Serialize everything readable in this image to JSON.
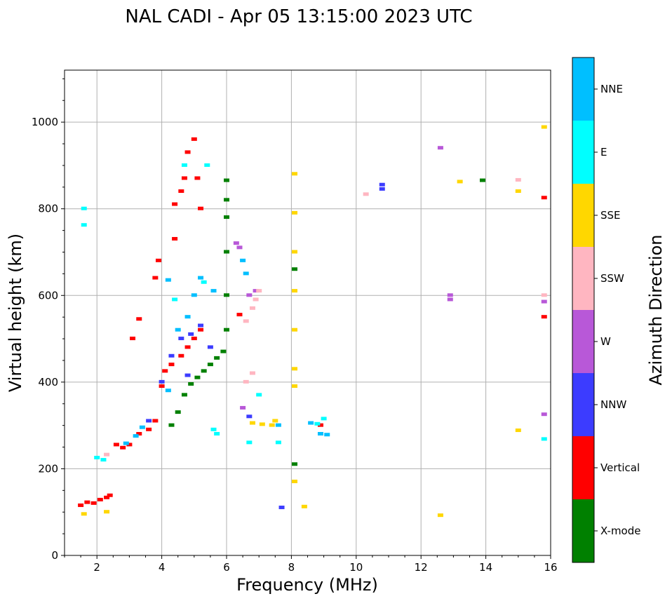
{
  "chart_data": {
    "type": "scatter",
    "title": "NAL CADI - Apr 05 13:15:00 2023 UTC",
    "xlabel": "Frequency (MHz)",
    "ylabel": "Virtual height (km)",
    "xlim": [
      1,
      16
    ],
    "ylim": [
      0,
      1120
    ],
    "xticks": [
      "2",
      "4",
      "6",
      "8",
      "10",
      "12",
      "14",
      "16"
    ],
    "yticks": [
      "0",
      "200",
      "400",
      "600",
      "800",
      "1000"
    ],
    "grid": true,
    "colorbar": {
      "label": "Azimuth Direction",
      "categories": [
        "X-mode",
        "Vertical",
        "NNW",
        "W",
        "SSW",
        "SSE",
        "E",
        "NNE"
      ],
      "colors": {
        "X-mode": "#008000",
        "Vertical": "#ff0000",
        "NNW": "#3c3cff",
        "W": "#b858d8",
        "SSW": "#ffb6c1",
        "SSE": "#ffd700",
        "E": "#00ffff",
        "NNE": "#00bfff"
      }
    },
    "series": [
      {
        "name": "X-mode",
        "x": [
          4.3,
          4.5,
          4.7,
          4.9,
          5.1,
          5.3,
          5.5,
          5.7,
          5.9,
          6.0,
          6.0,
          6.0,
          6.0,
          6.0,
          6.0,
          8.1,
          8.1,
          13.9
        ],
        "y": [
          300,
          330,
          370,
          395,
          410,
          425,
          440,
          455,
          470,
          520,
          600,
          700,
          780,
          820,
          865,
          660,
          210,
          865
        ]
      },
      {
        "name": "Vertical",
        "x": [
          1.5,
          1.7,
          1.9,
          2.1,
          2.3,
          2.4,
          2.6,
          2.8,
          3.0,
          3.3,
          3.6,
          3.8,
          4.0,
          4.1,
          4.3,
          4.6,
          4.8,
          5.0,
          5.2,
          3.1,
          3.3,
          3.8,
          3.9,
          4.4,
          4.6,
          4.7,
          4.8,
          5.0,
          5.1,
          5.2,
          4.4,
          15.8,
          15.8,
          8.9,
          6.4
        ],
        "y": [
          115,
          122,
          120,
          128,
          133,
          138,
          255,
          248,
          255,
          280,
          290,
          310,
          390,
          425,
          440,
          460,
          480,
          500,
          520,
          500,
          545,
          640,
          680,
          810,
          840,
          870,
          930,
          960,
          870,
          800,
          730,
          825,
          550,
          300,
          555
        ]
      },
      {
        "name": "NNW",
        "x": [
          4.0,
          4.3,
          4.6,
          4.9,
          5.2,
          5.5,
          4.8,
          3.6,
          7.7,
          10.8,
          10.8,
          6.7
        ],
        "y": [
          400,
          460,
          500,
          510,
          530,
          480,
          415,
          310,
          110,
          845,
          855,
          320
        ]
      },
      {
        "name": "W",
        "x": [
          6.5,
          6.7,
          6.9,
          12.6,
          12.9,
          12.9,
          15.8,
          15.8,
          6.3,
          6.4
        ],
        "y": [
          340,
          600,
          610,
          940,
          600,
          590,
          585,
          325,
          720,
          710
        ]
      },
      {
        "name": "SSW",
        "x": [
          6.6,
          6.8,
          6.9,
          7.0,
          15.8,
          15.0,
          6.8,
          10.3,
          2.3,
          6.6
        ],
        "y": [
          540,
          570,
          590,
          610,
          600,
          866,
          420,
          833,
          232,
          400
        ]
      },
      {
        "name": "SSE",
        "x": [
          6.8,
          7.1,
          7.4,
          7.5,
          8.1,
          8.1,
          8.1,
          8.1,
          8.1,
          8.1,
          8.4,
          12.6,
          13.2,
          15.0,
          15.0,
          15.8,
          8.1,
          8.1,
          1.6,
          2.3
        ],
        "y": [
          305,
          302,
          300,
          310,
          880,
          790,
          700,
          610,
          520,
          430,
          112,
          92,
          862,
          840,
          288,
          988,
          390,
          170,
          95,
          100
        ]
      },
      {
        "name": "E",
        "x": [
          1.6,
          1.6,
          2.0,
          2.2,
          4.7,
          5.3,
          5.6,
          5.7,
          7.0,
          7.6,
          8.8,
          9.0,
          15.8,
          5.4,
          6.7,
          4.4
        ],
        "y": [
          800,
          762,
          225,
          220,
          900,
          630,
          290,
          280,
          370,
          260,
          303,
          315,
          268,
          900,
          260,
          590
        ]
      },
      {
        "name": "NNE",
        "x": [
          3.4,
          4.2,
          4.5,
          4.8,
          5.0,
          5.2,
          5.6,
          6.5,
          6.6,
          7.6,
          8.6,
          8.9,
          9.1,
          4.2,
          2.9,
          3.2
        ],
        "y": [
          295,
          380,
          520,
          550,
          600,
          640,
          610,
          680,
          650,
          300,
          305,
          280,
          278,
          635,
          258,
          275
        ]
      }
    ]
  }
}
